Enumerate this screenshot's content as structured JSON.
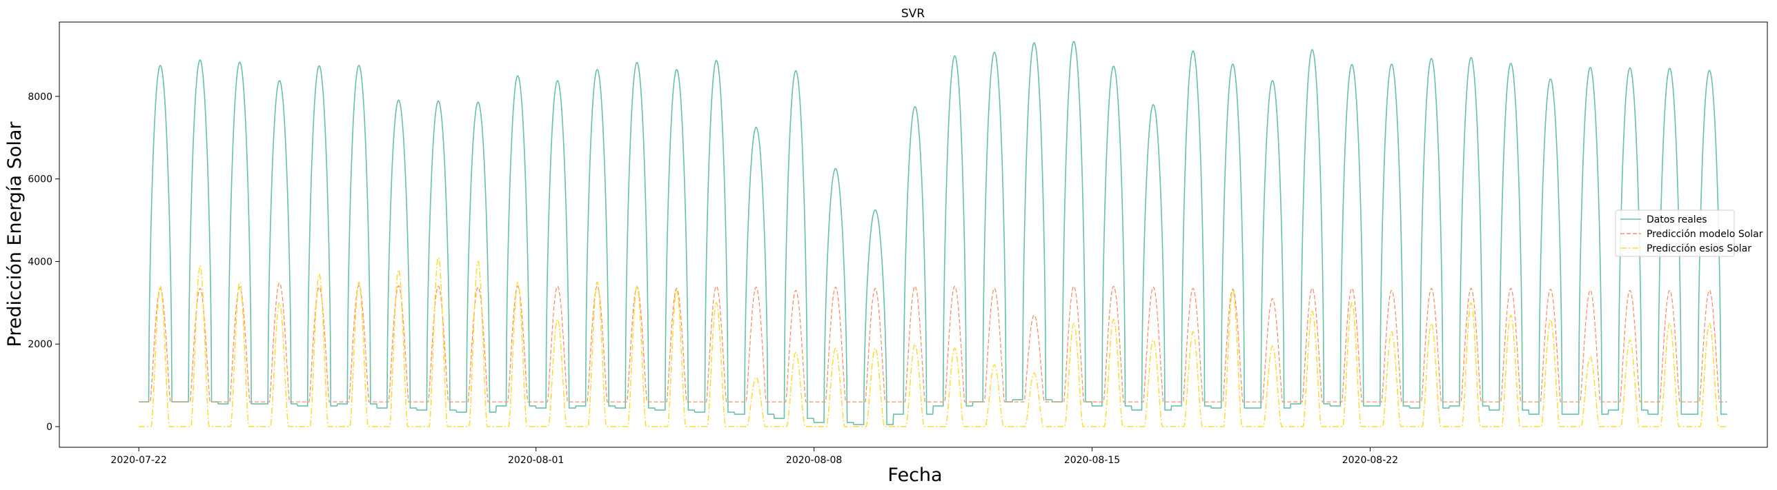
{
  "chart_data": {
    "type": "line",
    "title": "SVR",
    "xlabel": "Fecha",
    "ylabel": "Predicción Energía Solar",
    "x_start": "2020-07-22",
    "xlim": [
      "2020-07-20",
      "2020-09-01"
    ],
    "ylim": [
      -500,
      9800
    ],
    "xticks": [
      "2020-07-22",
      "2020-08-01",
      "2020-08-08",
      "2020-08-15",
      "2020-08-22"
    ],
    "yticks": [
      0,
      2000,
      4000,
      6000,
      8000
    ],
    "x_values": [
      "2020-07-22",
      "2020-07-23",
      "2020-07-24",
      "2020-07-25",
      "2020-07-26",
      "2020-07-27",
      "2020-07-28",
      "2020-07-29",
      "2020-07-30",
      "2020-07-31",
      "2020-08-01",
      "2020-08-02",
      "2020-08-03",
      "2020-08-04",
      "2020-08-05",
      "2020-08-06",
      "2020-08-07",
      "2020-08-08",
      "2020-08-09",
      "2020-08-10",
      "2020-08-11",
      "2020-08-12",
      "2020-08-13",
      "2020-08-14",
      "2020-08-15",
      "2020-08-16",
      "2020-08-17",
      "2020-08-18",
      "2020-08-19",
      "2020-08-20",
      "2020-08-21",
      "2020-08-22",
      "2020-08-23",
      "2020-08-24",
      "2020-08-25",
      "2020-08-26",
      "2020-08-27",
      "2020-08-28",
      "2020-08-29",
      "2020-08-30"
    ],
    "legend_position": "center right",
    "grid": false,
    "series": [
      {
        "name": "Datos reales",
        "color": "#66c2a5",
        "dash": "solid",
        "daily_peak": [
          8750,
          8880,
          8830,
          8380,
          8740,
          8750,
          7910,
          7890,
          7860,
          8500,
          8380,
          8650,
          8820,
          8650,
          8870,
          7250,
          8620,
          6250,
          5250,
          7750,
          8980,
          9070,
          9300,
          9330,
          8730,
          7800,
          9100,
          8780,
          8380,
          9130,
          8770,
          8780,
          8920,
          8940,
          8800,
          8420,
          8700,
          8690,
          8680,
          8630
        ],
        "daily_min": [
          600,
          600,
          550,
          550,
          500,
          550,
          450,
          400,
          350,
          500,
          450,
          500,
          450,
          400,
          350,
          300,
          200,
          100,
          50,
          300,
          500,
          600,
          650,
          600,
          500,
          400,
          500,
          450,
          450,
          550,
          500,
          500,
          450,
          500,
          400,
          300,
          300,
          400,
          300,
          300
        ]
      },
      {
        "name": "Predicción modelo Solar",
        "color": "#fc8d62",
        "dash": "dashed",
        "daily_peak": [
          3350,
          3350,
          3380,
          3480,
          3380,
          3420,
          3410,
          3400,
          3380,
          3400,
          3400,
          3400,
          3380,
          3350,
          3400,
          3380,
          3300,
          3380,
          3350,
          3400,
          3400,
          3350,
          2700,
          3400,
          3400,
          3380,
          3350,
          3330,
          3100,
          3350,
          3350,
          3300,
          3350,
          3350,
          3350,
          3330,
          3300,
          3300,
          3300,
          3300
        ],
        "daily_min": [
          600,
          600,
          600,
          600,
          600,
          600,
          600,
          600,
          600,
          600,
          600,
          600,
          600,
          600,
          600,
          600,
          600,
          600,
          600,
          600,
          600,
          600,
          600,
          600,
          600,
          600,
          600,
          600,
          600,
          600,
          600,
          600,
          600,
          600,
          600,
          600,
          600,
          600,
          600,
          600
        ]
      },
      {
        "name": "Predicción esios Solar",
        "color": "#ffd92f",
        "dash": "dashdot",
        "daily_peak": [
          3400,
          3900,
          3500,
          3000,
          3700,
          3500,
          3800,
          4100,
          4000,
          3500,
          2600,
          3500,
          3400,
          3300,
          3000,
          1200,
          1800,
          1900,
          1900,
          2000,
          1900,
          1500,
          1300,
          2500,
          2600,
          2100,
          2300,
          3300,
          1950,
          2800,
          3000,
          2300,
          2500,
          3000,
          2700,
          2600,
          1700,
          2100,
          2500,
          2500
        ],
        "daily_min": [
          0,
          0,
          0,
          0,
          0,
          0,
          0,
          0,
          0,
          0,
          0,
          0,
          0,
          0,
          0,
          0,
          0,
          0,
          0,
          0,
          0,
          0,
          0,
          0,
          0,
          0,
          0,
          0,
          0,
          0,
          0,
          0,
          0,
          0,
          0,
          0,
          0,
          0,
          0,
          0
        ]
      }
    ]
  }
}
